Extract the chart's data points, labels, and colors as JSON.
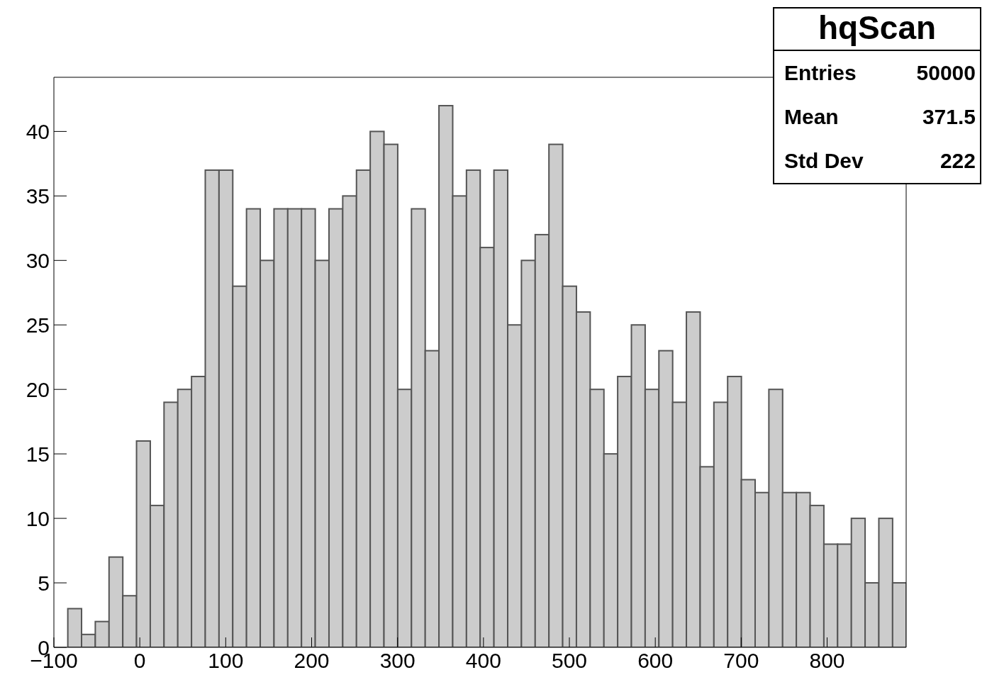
{
  "chart_data": {
    "type": "histogram",
    "title": "hqScan",
    "bins": [
      -84,
      -68,
      -52,
      -36,
      -20,
      -4,
      12,
      28,
      44,
      60,
      76,
      92,
      108,
      124,
      140,
      156,
      172,
      188,
      204,
      220,
      236,
      252,
      268,
      284,
      300,
      316,
      332,
      348,
      364,
      380,
      396,
      412,
      428,
      444,
      460,
      476,
      492,
      508,
      524,
      540,
      556,
      572,
      588,
      604,
      620,
      636,
      652,
      668,
      684,
      700,
      716,
      732,
      748,
      764,
      780,
      796,
      812,
      828,
      844,
      860,
      876,
      892
    ],
    "values": [
      3,
      1,
      2,
      7,
      4,
      16,
      11,
      19,
      20,
      21,
      37,
      37,
      28,
      34,
      30,
      34,
      34,
      34,
      30,
      34,
      35,
      37,
      40,
      39,
      20,
      34,
      23,
      42,
      35,
      37,
      31,
      37,
      25,
      30,
      32,
      39,
      28,
      26,
      20,
      15,
      21,
      25,
      20,
      23,
      19,
      26,
      14,
      19,
      21,
      13,
      12,
      20,
      12,
      12,
      11,
      8,
      8,
      10,
      5,
      10,
      5
    ],
    "color": "#cccccc",
    "xlim": [
      -100,
      892
    ],
    "xticks": [
      {
        "value": -100,
        "label": "−100"
      },
      0,
      100,
      200,
      300,
      400,
      500,
      600,
      700,
      800
    ],
    "ylim": [
      0,
      44.2
    ],
    "yticks": [
      0,
      5,
      10,
      15,
      20,
      25,
      30,
      35,
      40
    ],
    "grid": false,
    "annotations": [
      "Entries 50000",
      "Mean 371.5",
      "Std Dev 222"
    ]
  }
}
